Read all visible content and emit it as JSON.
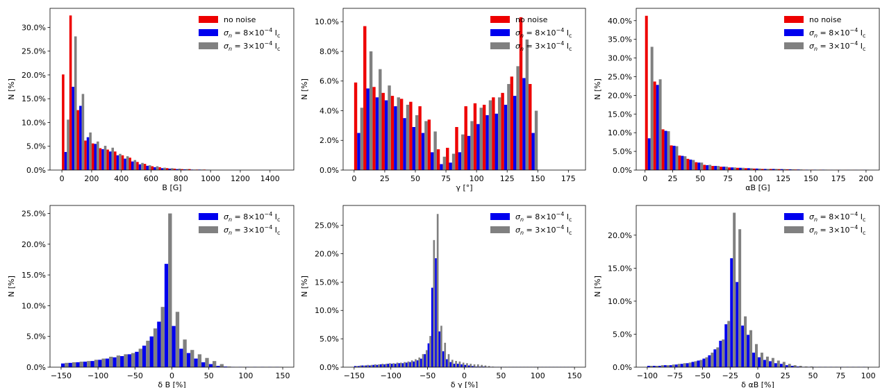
{
  "colors": {
    "no_noise": "#ee0000",
    "noise_low": "#0000ee",
    "noise_high": "#808080"
  },
  "legend": {
    "no_noise": "no noise",
    "noise_low": "σ",
    "noise_high": "σ",
    "subscript": "n",
    "low_eq": " = 8×10",
    "high_eq": " = 3×10",
    "exp": "−4",
    "ic": " I",
    "ic_sub": "c"
  },
  "chart_data": [
    {
      "type": "bar",
      "xlabel": "B [G]",
      "ylabel": "N [%]",
      "xlim": [
        -80,
        1560
      ],
      "ylim": [
        0,
        34
      ],
      "xticks": [
        0,
        200,
        400,
        600,
        800,
        1000,
        1200,
        1400
      ],
      "yticks": [
        0,
        5,
        10,
        15,
        20,
        25,
        30
      ],
      "ytick_labels": [
        "0.0%",
        "5.0%",
        "10.0%",
        "15.0%",
        "20.0%",
        "25.0%",
        "30.0%"
      ],
      "bin_width": 50,
      "bin_start": 0,
      "series": [
        {
          "key": "no_noise",
          "values": [
            20.1,
            32.5,
            12.6,
            6.2,
            5.6,
            4.6,
            4.3,
            3.9,
            3.1,
            2.6,
            1.7,
            1.3,
            0.8,
            0.6,
            0.4,
            0.3,
            0.2,
            0.2,
            0.1,
            0.1
          ]
        },
        {
          "key": "noise_low",
          "values": [
            3.8,
            17.5,
            13.5,
            6.9,
            5.5,
            4.4,
            3.9,
            3.1,
            2.4,
            1.8,
            1.2,
            0.9,
            0.6,
            0.4,
            0.3,
            0.2,
            0.15,
            0.1,
            0.1,
            0.05
          ]
        },
        {
          "key": "noise_high",
          "values": [
            10.6,
            28.1,
            16.0,
            7.9,
            6.0,
            5.1,
            4.7,
            3.4,
            2.9,
            2.1,
            1.5,
            1.0,
            0.8,
            0.5,
            0.4,
            0.3,
            0.2,
            0.1,
            0.1,
            0.05
          ]
        }
      ]
    },
    {
      "type": "bar",
      "xlabel": "γ [°]",
      "ylabel": "N [%]",
      "xlim": [
        -9,
        189
      ],
      "ylim": [
        0,
        10.9
      ],
      "xticks": [
        0,
        25,
        50,
        75,
        100,
        125,
        150,
        175
      ],
      "yticks": [
        0,
        2,
        4,
        6,
        8,
        10
      ],
      "ytick_labels": [
        "0.0%",
        "2.0%",
        "4.0%",
        "6.0%",
        "8.0%",
        "10.0%"
      ],
      "bin_width": 7.5,
      "bin_start": 0,
      "series": [
        {
          "key": "no_noise",
          "values": [
            5.9,
            9.7,
            5.6,
            5.2,
            5.0,
            4.8,
            4.6,
            4.3,
            3.4,
            1.4,
            1.5,
            2.9,
            4.3,
            4.5,
            4.4,
            4.9,
            5.2,
            6.3,
            10.3,
            5.8
          ]
        },
        {
          "key": "noise_low",
          "values": [
            2.5,
            5.5,
            4.9,
            4.7,
            4.3,
            3.5,
            2.9,
            2.5,
            1.2,
            0.4,
            0.5,
            1.2,
            2.3,
            3.1,
            3.7,
            3.8,
            4.4,
            5.0,
            6.2,
            2.5
          ]
        },
        {
          "key": "noise_high",
          "values": [
            4.2,
            8.0,
            6.8,
            5.7,
            4.9,
            4.4,
            3.7,
            3.3,
            2.6,
            0.9,
            1.1,
            2.4,
            3.3,
            4.2,
            4.7,
            4.9,
            5.8,
            7.0,
            8.8,
            4.0
          ]
        }
      ]
    },
    {
      "type": "bar",
      "xlabel": "αB [G]",
      "ylabel": "N [%]",
      "xlim": [
        -8,
        212
      ],
      "ylim": [
        0,
        43.3
      ],
      "xticks": [
        0,
        25,
        50,
        75,
        100,
        125,
        150,
        175,
        200
      ],
      "yticks": [
        0,
        5,
        10,
        15,
        20,
        25,
        30,
        35,
        40
      ],
      "ytick_labels": [
        "0.0%",
        "5.0%",
        "10.0%",
        "15.0%",
        "20.0%",
        "25.0%",
        "30.0%",
        "35.0%",
        "40.0%"
      ],
      "bin_width": 7.5,
      "bin_start": 0,
      "series": [
        {
          "key": "no_noise",
          "values": [
            41.3,
            23.7,
            10.9,
            6.6,
            3.9,
            3.0,
            2.1,
            1.4,
            1.1,
            0.9,
            0.7,
            0.6,
            0.5,
            0.4,
            0.3,
            0.3,
            0.25,
            0.2,
            0.15,
            0.1,
            0.1,
            0.1,
            0.05,
            0.05,
            0.05,
            0.05,
            0.05
          ]
        },
        {
          "key": "noise_low",
          "values": [
            8.5,
            22.8,
            10.5,
            6.5,
            3.8,
            2.8,
            2.0,
            1.3,
            1.1,
            0.9,
            0.7,
            0.6,
            0.5,
            0.4,
            0.3,
            0.3,
            0.25,
            0.2,
            0.15,
            0.1,
            0.1,
            0.1,
            0.05,
            0.05,
            0.05,
            0.05,
            0.05
          ]
        },
        {
          "key": "noise_high",
          "values": [
            33.0,
            24.3,
            10.4,
            6.4,
            3.7,
            2.7,
            2.0,
            1.4,
            1.1,
            0.9,
            0.7,
            0.6,
            0.5,
            0.4,
            0.3,
            0.3,
            0.25,
            0.2,
            0.15,
            0.1,
            0.1,
            0.1,
            0.05,
            0.05,
            0.05,
            0.05,
            0.05
          ]
        }
      ]
    },
    {
      "type": "bar",
      "xlabel": "δ B [%]",
      "ylabel": "N [%]",
      "xlim": [
        -165,
        165
      ],
      "ylim": [
        0,
        26.3
      ],
      "xticks": [
        -150,
        -100,
        -50,
        0,
        50,
        100,
        150
      ],
      "xtick_labels": [
        "−150",
        "−100",
        "−50",
        "0",
        "50",
        "100",
        "150"
      ],
      "yticks": [
        0,
        5,
        10,
        15,
        20,
        25
      ],
      "ytick_labels": [
        "0.0%",
        "5.0%",
        "10.0%",
        "15.0%",
        "20.0%",
        "25.0%"
      ],
      "bin_width": 10,
      "bin_start": -150,
      "series": [
        {
          "key": "noise_low",
          "values": [
            0.6,
            0.7,
            0.8,
            0.9,
            1.0,
            1.2,
            1.4,
            1.6,
            1.8,
            2.1,
            2.5,
            3.5,
            5.0,
            7.4,
            16.8,
            6.7,
            3.0,
            2.3,
            1.4,
            0.8,
            0.5,
            0.2,
            0.1,
            0.05,
            0.05,
            0.05,
            0.05,
            0.05,
            0.05,
            0.05
          ]
        },
        {
          "key": "noise_high",
          "values": [
            0.7,
            0.8,
            0.9,
            1.0,
            1.2,
            1.4,
            1.7,
            1.9,
            2.1,
            2.3,
            3.0,
            4.3,
            6.3,
            9.8,
            25.0,
            9.0,
            4.5,
            2.8,
            2.1,
            1.5,
            1.0,
            0.5,
            0.1,
            0.05,
            0.05,
            0.05,
            0.05,
            0.05,
            0.05,
            0.05
          ]
        }
      ]
    },
    {
      "type": "bar",
      "xlabel": "δ γ [%]",
      "ylabel": "N [%]",
      "xlim": [
        -165,
        165
      ],
      "ylim": [
        0,
        28.5
      ],
      "xticks": [
        -150,
        -100,
        -50,
        0,
        50,
        100,
        150
      ],
      "xtick_labels": [
        "−150",
        "−100",
        "−50",
        "0",
        "50",
        "100",
        "150"
      ],
      "yticks": [
        0,
        5,
        10,
        15,
        20,
        25
      ],
      "ytick_labels": [
        "0.0%",
        "5.0%",
        "10.0%",
        "15.0%",
        "20.0%",
        "25.0%"
      ],
      "bin_width": 5,
      "bin_start": -150,
      "series": [
        {
          "key": "noise_low",
          "values": [
            0.2,
            0.2,
            0.3,
            0.3,
            0.3,
            0.4,
            0.4,
            0.5,
            0.5,
            0.6,
            0.6,
            0.6,
            0.7,
            0.7,
            0.8,
            0.9,
            1.0,
            1.2,
            1.5,
            2.3,
            4.2,
            14.0,
            19.2,
            6.3,
            2.8,
            1.4,
            0.9,
            0.6,
            0.6,
            0.5,
            0.4,
            0.3,
            0.2,
            0.1,
            0.1,
            0.1,
            0.05,
            0.05,
            0.05,
            0.05,
            0.05,
            0.05,
            0.05,
            0.05,
            0.05,
            0.05,
            0.05,
            0.05,
            0.05,
            0.05,
            0.05,
            0.05,
            0.05,
            0.05,
            0.05,
            0.05,
            0.05,
            0.05,
            0.05,
            0.05
          ]
        },
        {
          "key": "noise_high",
          "values": [
            0.2,
            0.3,
            0.3,
            0.4,
            0.4,
            0.5,
            0.5,
            0.6,
            0.6,
            0.7,
            0.7,
            0.8,
            0.8,
            0.9,
            1.0,
            1.2,
            1.4,
            1.7,
            2.3,
            3.0,
            5.5,
            22.4,
            27.0,
            7.3,
            4.3,
            2.3,
            1.3,
            1.1,
            1.0,
            0.8,
            0.7,
            0.6,
            0.5,
            0.5,
            0.4,
            0.3,
            0.2,
            0.1,
            0.05,
            0.05,
            0.05,
            0.05,
            0.05,
            0.05,
            0.05,
            0.05,
            0.05,
            0.05,
            0.05,
            0.05,
            0.05,
            0.05,
            0.05,
            0.05,
            0.05,
            0.05,
            0.05,
            0.05,
            0.05,
            0.05
          ]
        }
      ]
    },
    {
      "type": "bar",
      "xlabel": "δ αB [%]",
      "ylabel": "N [%]",
      "xlim": [
        -110,
        110
      ],
      "ylim": [
        0,
        24.5
      ],
      "xticks": [
        -100,
        -75,
        -50,
        -25,
        0,
        25,
        50,
        75,
        100
      ],
      "xtick_labels": [
        "−100",
        "−75",
        "−50",
        "−25",
        "0",
        "25",
        "50",
        "75",
        "100"
      ],
      "yticks": [
        0,
        5,
        10,
        15,
        20
      ],
      "ytick_labels": [
        "0.0%",
        "5.0%",
        "10.0%",
        "15.0%",
        "20.0%"
      ],
      "bin_width": 5,
      "bin_start": -100,
      "series": [
        {
          "key": "noise_low",
          "values": [
            0.2,
            0.2,
            0.2,
            0.3,
            0.3,
            0.4,
            0.5,
            0.6,
            0.8,
            1.0,
            1.3,
            1.8,
            2.7,
            4.0,
            6.5,
            16.5,
            12.9,
            6.3,
            4.9,
            2.2,
            1.5,
            1.1,
            0.9,
            0.6,
            0.5,
            0.3,
            0.2,
            0.1,
            0.05,
            0.05,
            0.05,
            0.05,
            0.05,
            0.05,
            0.05,
            0.05,
            0.05,
            0.05,
            0.05,
            0.05
          ]
        },
        {
          "key": "noise_high",
          "values": [
            0.2,
            0.2,
            0.3,
            0.3,
            0.4,
            0.5,
            0.6,
            0.7,
            0.9,
            1.1,
            1.5,
            2.2,
            3.0,
            4.2,
            7.0,
            23.4,
            20.9,
            7.7,
            5.6,
            3.5,
            2.2,
            1.6,
            1.4,
            1.0,
            0.8,
            0.5,
            0.3,
            0.2,
            0.1,
            0.1,
            0.05,
            0.05,
            0.05,
            0.05,
            0.05,
            0.05,
            0.05,
            0.05,
            0.05,
            0.05
          ]
        }
      ]
    }
  ]
}
